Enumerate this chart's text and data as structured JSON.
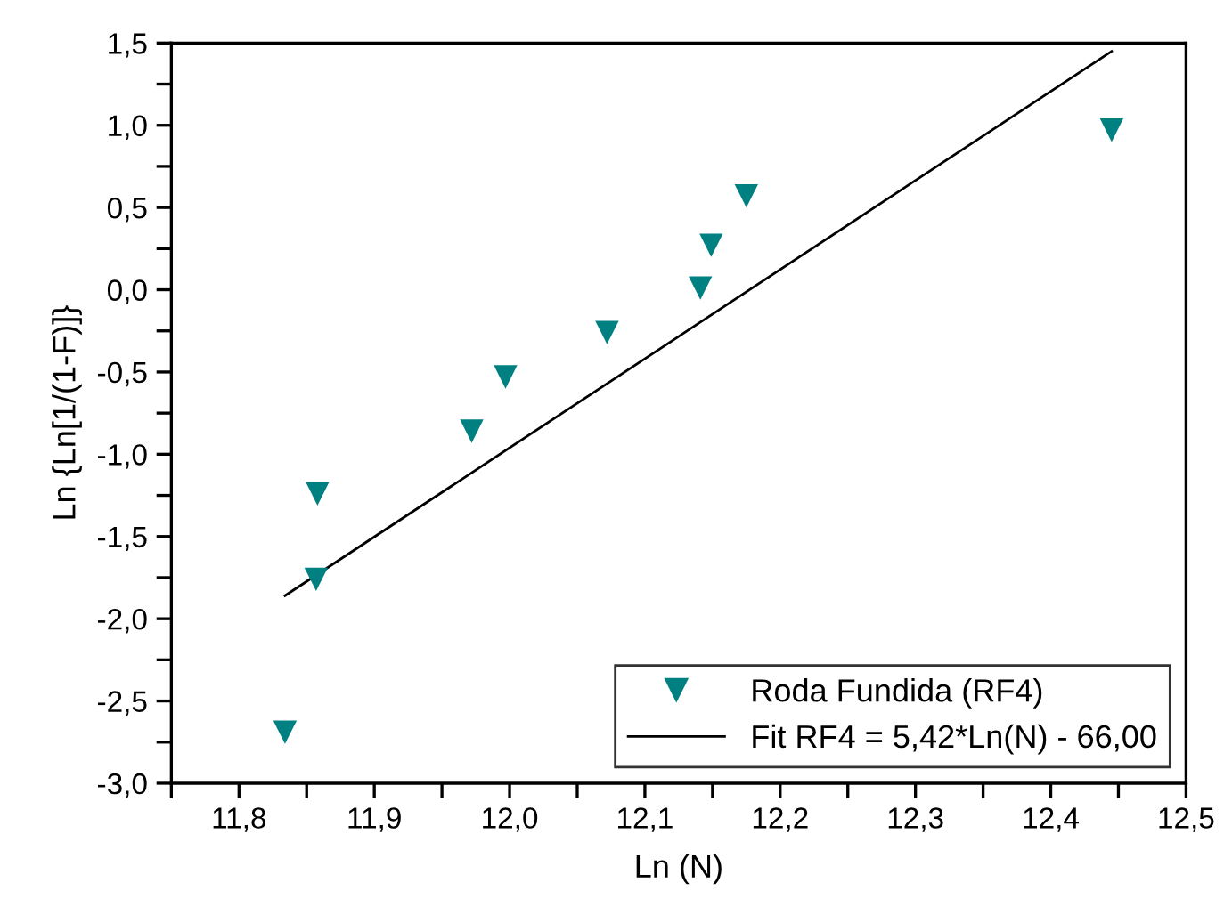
{
  "chart_data": {
    "type": "scatter",
    "xlabel": "Ln (N)",
    "ylabel": "Ln {Ln[1/(1-F)]}",
    "series": [
      {
        "name": "Roda Fundida (RF4)",
        "color": "#008080",
        "marker": "triangle",
        "x": [
          11.834,
          11.857,
          11.858,
          11.972,
          11.997,
          12.072,
          12.141,
          12.149,
          12.175,
          12.445
        ],
        "values": [
          -2.69,
          -1.76,
          -1.24,
          -0.86,
          -0.53,
          -0.26,
          0.01,
          0.27,
          0.57,
          0.97
        ]
      },
      {
        "name": "Fit RF4 = 5,42*Ln(N) - 66,00",
        "color": "#000000",
        "type": "line",
        "marker": "none",
        "line_style": "solid",
        "x": [
          11.834,
          12.445
        ],
        "values": [
          -1.86,
          1.45
        ]
      }
    ],
    "xlim": [
      11.75,
      12.5
    ],
    "ylim": [
      -3.0,
      1.5
    ],
    "xticks": [
      {
        "value": 11.75,
        "label": null
      },
      {
        "value": 11.8,
        "label": "11,8"
      },
      {
        "value": 11.85,
        "label": null
      },
      {
        "value": 11.9,
        "label": "11,9"
      },
      {
        "value": 11.95,
        "label": null
      },
      {
        "value": 12.0,
        "label": "12,0"
      },
      {
        "value": 12.05,
        "label": null
      },
      {
        "value": 12.1,
        "label": "12,1"
      },
      {
        "value": 12.15,
        "label": null
      },
      {
        "value": 12.2,
        "label": "12,2"
      },
      {
        "value": 12.25,
        "label": null
      },
      {
        "value": 12.3,
        "label": "12,3"
      },
      {
        "value": 12.35,
        "label": null
      },
      {
        "value": 12.4,
        "label": "12,4"
      },
      {
        "value": 12.45,
        "label": null
      },
      {
        "value": 12.5,
        "label": "12,5"
      }
    ],
    "yticks": [
      {
        "value": -3.0,
        "label": "-3,0"
      },
      {
        "value": -2.75,
        "label": null
      },
      {
        "value": -2.5,
        "label": "-2,5"
      },
      {
        "value": -2.25,
        "label": null
      },
      {
        "value": -2.0,
        "label": "-2,0"
      },
      {
        "value": -1.75,
        "label": null
      },
      {
        "value": -1.5,
        "label": "-1,5"
      },
      {
        "value": -1.25,
        "label": null
      },
      {
        "value": -1.0,
        "label": "-1,0"
      },
      {
        "value": -0.75,
        "label": null
      },
      {
        "value": -0.5,
        "label": "-0,5"
      },
      {
        "value": -0.25,
        "label": null
      },
      {
        "value": 0.0,
        "label": "0,0"
      },
      {
        "value": 0.25,
        "label": null
      },
      {
        "value": 0.5,
        "label": "0,5"
      },
      {
        "value": 0.75,
        "label": null
      },
      {
        "value": 1.0,
        "label": "1,0"
      },
      {
        "value": 1.25,
        "label": null
      },
      {
        "value": 1.5,
        "label": "1,5"
      }
    ],
    "grid": false,
    "legend": "bottom right"
  }
}
